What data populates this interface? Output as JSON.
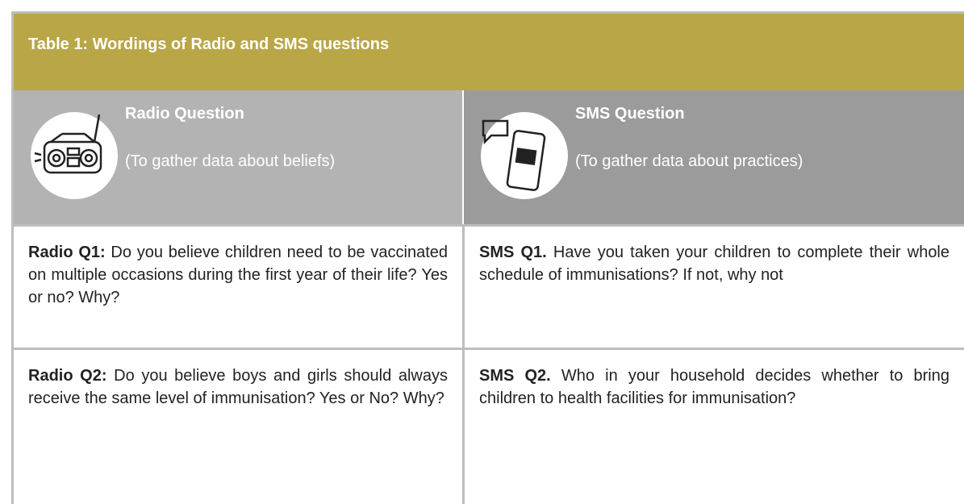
{
  "table": {
    "title": "Table 1: Wordings of Radio and SMS questions",
    "header": [
      {
        "title": "Radio Question",
        "subtitle": "(To gather data about beliefs)"
      },
      {
        "title": "SMS Question",
        "subtitle": "(To gather data about practices)"
      }
    ],
    "rows": [
      [
        {
          "label": "Radio Q1:",
          "text": " Do you believe children need to be vaccinated on multiple occasions during the first year of their life? Yes or no? Why?"
        },
        {
          "label": "SMS Q1.",
          "text": " Have you taken your children to complete their whole schedule of immunisations? If not, why not"
        }
      ],
      [
        {
          "label": "Radio Q2:",
          "text": " Do you believe boys and girls should always receive the same level of immunisation? Yes or No? Why?"
        },
        {
          "label": "SMS Q2.",
          "text": " Who in your household decides whether to bring children to health facilities for immunisation?"
        }
      ]
    ]
  }
}
